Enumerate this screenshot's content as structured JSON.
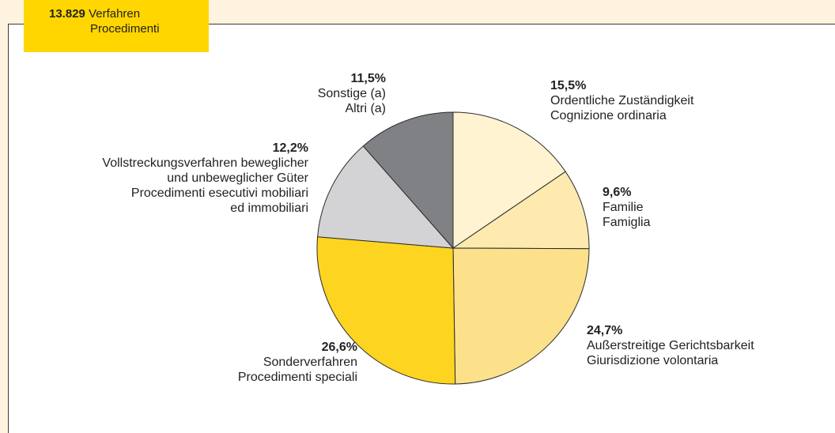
{
  "header": {
    "count": "13.829",
    "title_de": "Verfahren",
    "title_it": "Procedimenti"
  },
  "chart_data": {
    "type": "pie",
    "start": "12 o'clock, clockwise",
    "slices": [
      {
        "value": 15.5,
        "pct_label": "15,5%",
        "label_lines": [
          "Ordentliche Zuständigkeit",
          "Cognizione ordinaria"
        ],
        "color": "#fff3d1"
      },
      {
        "value": 9.6,
        "pct_label": "9,6%",
        "label_lines": [
          "Familie",
          "Famiglia"
        ],
        "color": "#feeaae"
      },
      {
        "value": 24.7,
        "pct_label": "24,7%",
        "label_lines": [
          "Außerstreitige Gerichtsbarkeit",
          "Giurisdizione volontaria"
        ],
        "color": "#fde18a"
      },
      {
        "value": 26.6,
        "pct_label": "26,6%",
        "label_lines": [
          "Sonderverfahren",
          "Procedimenti speciali"
        ],
        "color": "#fdd520"
      },
      {
        "value": 12.2,
        "pct_label": "12,2%",
        "label_lines": [
          "Vollstreckungsverfahren beweglicher",
          "und unbeweglicher Güter",
          "Procedimenti esecutivi mobiliari",
          "ed immobiliari"
        ],
        "color": "#d3d3d5"
      },
      {
        "value": 11.5,
        "pct_label": "11,5%",
        "label_lines": [
          "Sonstige (a)",
          "Altri (a)"
        ],
        "color": "#808184"
      }
    ]
  }
}
